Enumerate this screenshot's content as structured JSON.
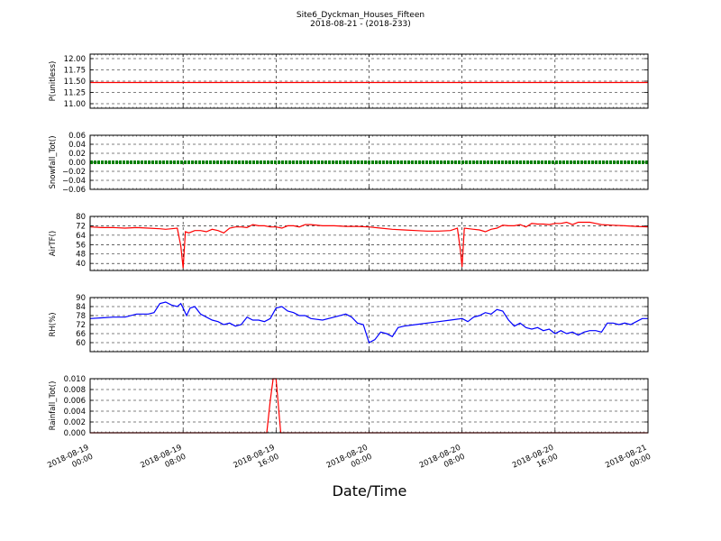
{
  "title": "Site6_Dyckman_Houses_Fifteen",
  "subtitle": "2018-08-21 - (2018-233)",
  "xlabel": "Date/Time",
  "x_ticks": [
    {
      "l1": "2018-08-19",
      "l2": "00:00",
      "h": 0
    },
    {
      "l1": "2018-08-19",
      "l2": "08:00",
      "h": 8
    },
    {
      "l1": "2018-08-19",
      "l2": "16:00",
      "h": 16
    },
    {
      "l1": "2018-08-20",
      "l2": "00:00",
      "h": 24
    },
    {
      "l1": "2018-08-20",
      "l2": "08:00",
      "h": 32
    },
    {
      "l1": "2018-08-20",
      "l2": "16:00",
      "h": 40
    },
    {
      "l1": "2018-08-21",
      "l2": "00:00",
      "h": 48
    }
  ],
  "chart_data": [
    {
      "type": "line",
      "ylabel": "P(unitless)",
      "ylim": [
        10.9,
        12.1
      ],
      "yticks": [
        11.0,
        11.25,
        11.5,
        11.75,
        12.0
      ],
      "ytick_labels": [
        "11.00",
        "11.25",
        "11.50",
        "11.75",
        "12.00"
      ],
      "grid": true,
      "series": [
        {
          "color": "#ff0000",
          "x": [
            0,
            48
          ],
          "y": [
            11.47,
            11.47
          ]
        }
      ]
    },
    {
      "type": "line",
      "ylabel": "Snowfall_Tot()",
      "ylim": [
        -0.06,
        0.06
      ],
      "yticks": [
        -0.06,
        -0.04,
        -0.02,
        0.0,
        0.02,
        0.04,
        0.06
      ],
      "ytick_labels": [
        "−0.06",
        "−0.04",
        "−0.02",
        "0.00",
        "0.02",
        "0.04",
        "0.06"
      ],
      "grid": true,
      "series": [
        {
          "color": "#008000",
          "x": [
            0,
            48
          ],
          "y": [
            0,
            0
          ]
        }
      ]
    },
    {
      "type": "line",
      "ylabel": "AirTF()",
      "ylim": [
        34,
        80
      ],
      "yticks": [
        40,
        48,
        56,
        64,
        72,
        80
      ],
      "ytick_labels": [
        "40",
        "48",
        "56",
        "64",
        "72",
        "80"
      ],
      "grid": true,
      "series": [
        {
          "color": "#ff0000",
          "x": [
            0,
            1,
            2,
            3,
            4,
            5,
            6,
            6.5,
            7,
            7.5,
            7.8,
            8,
            8.2,
            8.5,
            9,
            9.5,
            10,
            10.5,
            11,
            11.5,
            12,
            12.5,
            13,
            13.5,
            14,
            14.5,
            15,
            15.5,
            16,
            16.5,
            17,
            17.5,
            18,
            18.5,
            19,
            20,
            21,
            22,
            23,
            24,
            25,
            26,
            27,
            28,
            29,
            30,
            31,
            31.6,
            31.85,
            32,
            32.2,
            32.6,
            33,
            33.5,
            34,
            34.5,
            35,
            35.5,
            36,
            36.5,
            37,
            37.5,
            38,
            38.5,
            39,
            39.5,
            40,
            40.5,
            41,
            41.5,
            42,
            42.5,
            43,
            43.5,
            44,
            45,
            46,
            47,
            48
          ],
          "y": [
            71,
            70.5,
            70.5,
            70,
            70.5,
            70,
            69.5,
            69,
            69.5,
            70,
            55,
            36,
            67,
            66,
            68,
            68,
            67,
            69,
            68,
            66,
            70,
            71,
            71,
            70.5,
            73,
            72,
            72,
            71,
            71,
            70,
            72,
            72,
            71,
            73,
            73,
            72,
            72,
            71.5,
            71.5,
            71,
            70,
            69,
            68.5,
            68,
            67.5,
            67.5,
            68,
            70,
            52,
            37,
            70,
            69.5,
            69,
            68.5,
            67,
            69,
            70,
            72.5,
            72,
            72,
            73,
            71,
            74,
            73.5,
            73.5,
            73,
            74,
            74,
            75,
            73,
            75,
            75,
            75,
            74,
            73,
            72.5,
            72,
            71.5,
            71
          ]
        }
      ]
    },
    {
      "type": "line",
      "ylabel": "RH(%)",
      "ylim": [
        54,
        90
      ],
      "yticks": [
        60,
        66,
        72,
        78,
        84,
        90
      ],
      "ytick_labels": [
        "60",
        "66",
        "72",
        "78",
        "84",
        "90"
      ],
      "grid": true,
      "series": [
        {
          "color": "#0000ff",
          "x": [
            0,
            1,
            2,
            3,
            4,
            5,
            5.5,
            6,
            6.5,
            7,
            7.5,
            7.8,
            8,
            8.3,
            8.6,
            9,
            9.5,
            10,
            10.5,
            11,
            11.5,
            12,
            12.5,
            13,
            13.5,
            14,
            14.5,
            15,
            15.5,
            16,
            16.5,
            17,
            17.5,
            18,
            18.5,
            19,
            20,
            21,
            22,
            22.5,
            23,
            23.5,
            24,
            24.5,
            25,
            25.5,
            26,
            26.5,
            27,
            28,
            29,
            30,
            31,
            32,
            32.5,
            33,
            33.5,
            34,
            34.5,
            35,
            35.5,
            36,
            36.5,
            37,
            37.5,
            38,
            38.5,
            39,
            39.5,
            40,
            40.5,
            41,
            41.5,
            42,
            42.5,
            43,
            43.5,
            44,
            44.5,
            45,
            45.5,
            46,
            46.5,
            47,
            47.5,
            48
          ],
          "y": [
            76,
            76.5,
            77,
            77,
            79,
            79,
            80,
            86,
            87,
            85,
            84,
            86,
            83,
            78,
            83,
            84,
            79,
            77,
            75,
            74,
            72,
            73,
            71,
            72,
            77,
            75,
            75,
            74,
            76,
            83,
            84,
            81,
            80,
            78,
            78,
            76,
            75,
            77,
            79,
            77,
            73,
            72,
            60,
            62,
            67,
            66,
            64,
            70,
            71,
            72,
            73,
            74,
            75,
            76,
            74,
            77,
            78,
            80,
            79,
            82,
            81,
            75,
            71,
            73,
            70,
            69,
            70,
            68,
            69,
            66,
            68,
            66,
            67,
            65,
            67,
            68,
            68,
            67,
            73,
            73,
            72,
            73,
            72,
            74,
            76,
            76
          ]
        }
      ]
    },
    {
      "type": "line",
      "ylabel": "Rainfall_Tot()",
      "ylim": [
        0,
        0.01
      ],
      "yticks": [
        0,
        0.002,
        0.004,
        0.006,
        0.008,
        0.01
      ],
      "ytick_labels": [
        "0.000",
        "0.002",
        "0.004",
        "0.006",
        "0.008",
        "0.010"
      ],
      "grid": true,
      "series": [
        {
          "color": "#ff0000",
          "x": [
            0,
            15.2,
            15.5,
            15.75,
            16.0,
            16.4,
            48
          ],
          "y": [
            0,
            0,
            0.006,
            0.01,
            0.01,
            0,
            0
          ]
        }
      ]
    }
  ]
}
